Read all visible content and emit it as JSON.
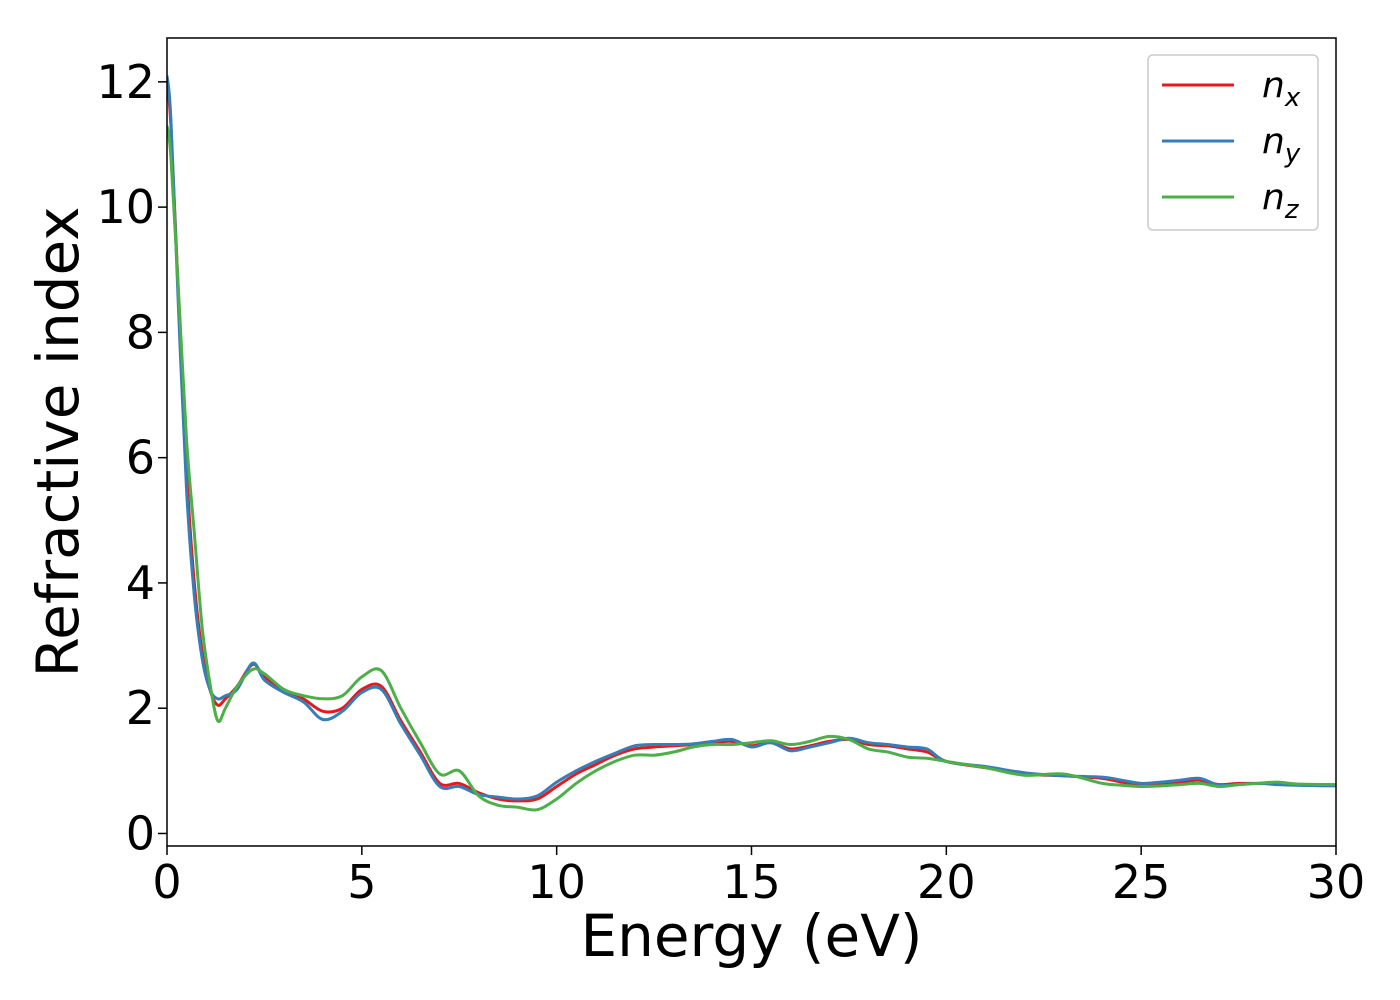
{
  "chart_data": {
    "type": "line",
    "title": "",
    "xlabel": "Energy (eV)",
    "ylabel": "Refractive index",
    "xlim": [
      0,
      30
    ],
    "ylim": [
      -0.2,
      12.7
    ],
    "xticks": [
      "0",
      "5",
      "10",
      "15",
      "20",
      "25",
      "30"
    ],
    "yticks": [
      "0",
      "2",
      "4",
      "6",
      "8",
      "10",
      "12"
    ],
    "grid": false,
    "legend_position": "top-right",
    "series": [
      {
        "name": "n",
        "subscript": "x",
        "color": "#e41a1c",
        "x": [
          0,
          0.1,
          0.3,
          0.5,
          0.7,
          0.9,
          1.1,
          1.3,
          1.5,
          1.8,
          2.2,
          2.5,
          3.0,
          3.5,
          4.0,
          4.5,
          5.0,
          5.5,
          6.0,
          6.5,
          7.0,
          7.5,
          8.0,
          8.5,
          9.0,
          9.5,
          10.0,
          10.5,
          11.0,
          11.5,
          12.0,
          12.5,
          13.0,
          13.5,
          14.0,
          14.5,
          15.0,
          15.5,
          16.0,
          16.5,
          17.0,
          17.5,
          18.0,
          18.5,
          19.0,
          19.5,
          20.0,
          21.0,
          22.0,
          23.0,
          24.0,
          24.5,
          25.0,
          25.5,
          26.0,
          26.5,
          27.0,
          27.5,
          28.0,
          28.5,
          29.0,
          30.0
        ],
        "values": [
          12.0,
          11.3,
          8.5,
          5.8,
          4.0,
          2.9,
          2.3,
          2.05,
          2.15,
          2.35,
          2.7,
          2.5,
          2.3,
          2.15,
          1.95,
          2.0,
          2.3,
          2.35,
          1.8,
          1.3,
          0.8,
          0.8,
          0.65,
          0.55,
          0.52,
          0.55,
          0.75,
          0.95,
          1.1,
          1.25,
          1.35,
          1.38,
          1.4,
          1.42,
          1.45,
          1.47,
          1.4,
          1.45,
          1.35,
          1.4,
          1.47,
          1.5,
          1.42,
          1.4,
          1.35,
          1.3,
          1.15,
          1.05,
          0.95,
          0.92,
          0.88,
          0.82,
          0.78,
          0.8,
          0.82,
          0.85,
          0.78,
          0.8,
          0.8,
          0.8,
          0.78,
          0.77
        ]
      },
      {
        "name": "n",
        "subscript": "y",
        "color": "#377eb8",
        "x": [
          0,
          0.1,
          0.3,
          0.5,
          0.7,
          0.9,
          1.1,
          1.3,
          1.5,
          1.8,
          2.2,
          2.5,
          3.0,
          3.5,
          4.0,
          4.5,
          5.0,
          5.5,
          6.0,
          6.5,
          7.0,
          7.5,
          8.0,
          8.5,
          9.0,
          9.5,
          10.0,
          10.5,
          11.0,
          11.5,
          12.0,
          12.5,
          13.0,
          13.5,
          14.0,
          14.5,
          15.0,
          15.5,
          16.0,
          16.5,
          17.0,
          17.5,
          18.0,
          18.5,
          19.0,
          19.5,
          20.0,
          21.0,
          22.0,
          23.0,
          24.0,
          24.5,
          25.0,
          25.5,
          26.0,
          26.5,
          27.0,
          27.5,
          28.0,
          28.5,
          29.0,
          30.0
        ],
        "values": [
          12.1,
          11.4,
          8.3,
          5.5,
          3.8,
          2.8,
          2.3,
          2.15,
          2.2,
          2.3,
          2.72,
          2.45,
          2.25,
          2.1,
          1.82,
          1.95,
          2.25,
          2.3,
          1.75,
          1.25,
          0.75,
          0.75,
          0.62,
          0.58,
          0.55,
          0.6,
          0.82,
          1.0,
          1.15,
          1.28,
          1.4,
          1.42,
          1.42,
          1.43,
          1.47,
          1.5,
          1.38,
          1.45,
          1.32,
          1.38,
          1.45,
          1.52,
          1.45,
          1.42,
          1.38,
          1.35,
          1.15,
          1.07,
          0.97,
          0.92,
          0.9,
          0.85,
          0.8,
          0.82,
          0.85,
          0.88,
          0.77,
          0.78,
          0.8,
          0.78,
          0.77,
          0.76
        ]
      },
      {
        "name": "n",
        "subscript": "z",
        "color": "#4daf4a",
        "x": [
          0,
          0.1,
          0.3,
          0.5,
          0.7,
          0.9,
          1.1,
          1.3,
          1.5,
          1.8,
          2.2,
          2.5,
          3.0,
          3.5,
          4.0,
          4.5,
          5.0,
          5.5,
          6.0,
          6.5,
          7.0,
          7.5,
          8.0,
          8.5,
          9.0,
          9.5,
          10.0,
          10.5,
          11.0,
          11.5,
          12.0,
          12.5,
          13.0,
          13.5,
          14.0,
          14.5,
          15.0,
          15.5,
          16.0,
          16.5,
          17.0,
          17.5,
          18.0,
          18.5,
          19.0,
          19.5,
          20.0,
          21.0,
          22.0,
          23.0,
          24.0,
          24.5,
          25.0,
          25.5,
          26.0,
          26.5,
          27.0,
          27.5,
          28.0,
          28.5,
          29.0,
          30.0
        ],
        "values": [
          11.3,
          10.8,
          8.6,
          6.3,
          4.8,
          3.3,
          2.4,
          1.8,
          2.0,
          2.35,
          2.62,
          2.55,
          2.3,
          2.2,
          2.15,
          2.2,
          2.5,
          2.6,
          2.0,
          1.45,
          0.95,
          1.0,
          0.6,
          0.45,
          0.42,
          0.38,
          0.55,
          0.8,
          1.0,
          1.15,
          1.25,
          1.25,
          1.3,
          1.38,
          1.42,
          1.42,
          1.45,
          1.48,
          1.42,
          1.47,
          1.55,
          1.5,
          1.35,
          1.3,
          1.22,
          1.2,
          1.15,
          1.05,
          0.93,
          0.95,
          0.8,
          0.77,
          0.75,
          0.76,
          0.78,
          0.8,
          0.75,
          0.78,
          0.8,
          0.82,
          0.79,
          0.78
        ]
      }
    ]
  }
}
